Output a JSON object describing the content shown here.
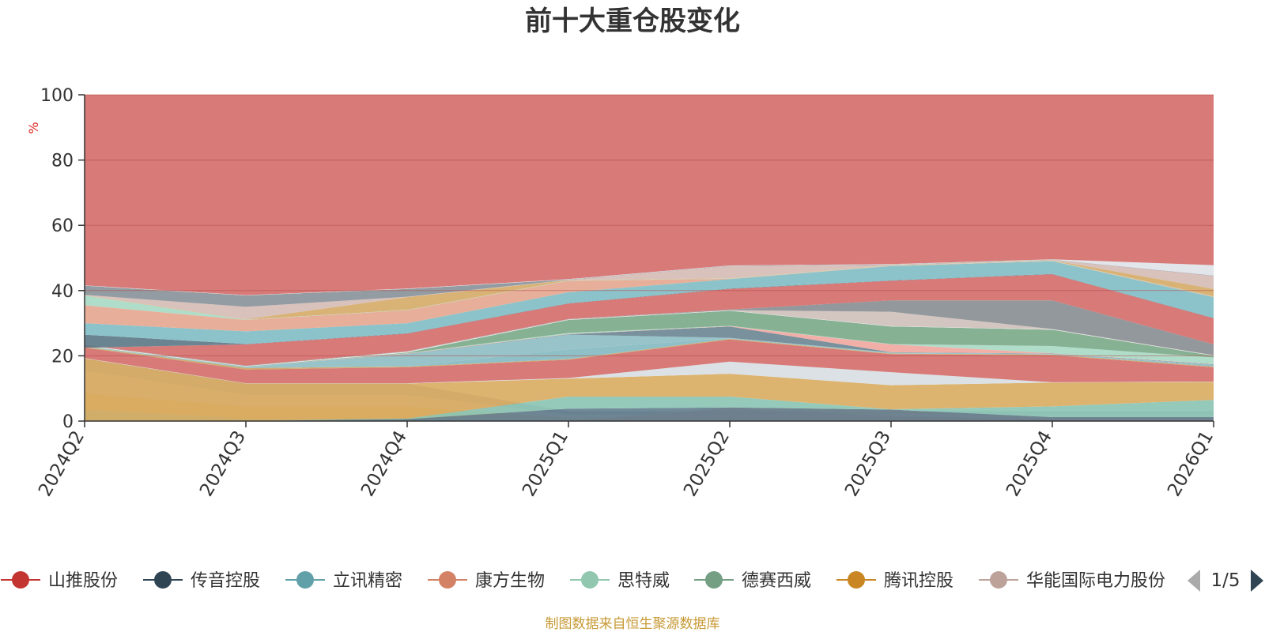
{
  "chart_data": {
    "type": "area",
    "stacked": true,
    "title": "前十大重仓股变化",
    "ylabel": "%",
    "ylim": [
      0,
      100
    ],
    "yticks": [
      0,
      20,
      40,
      60,
      80,
      100
    ],
    "categories": [
      "2024Q2",
      "2024Q3",
      "2024Q4",
      "2025Q1",
      "2025Q2",
      "2025Q3",
      "2025Q4",
      "2026Q1"
    ],
    "bands": [
      {
        "color": "#66a9b3",
        "base": [
          0,
          0,
          0,
          0,
          0,
          0,
          0,
          0
        ],
        "top": [
          3.5,
          0.8,
          0.5,
          0.4,
          0.4,
          0.4,
          0.4,
          0.4
        ]
      },
      {
        "color": "#d7a24e",
        "base": [
          3.5,
          0.8,
          0.5,
          0.4,
          0.4,
          0.4,
          0.4,
          0.4
        ],
        "top": [
          8.5,
          4.5,
          4.5,
          1,
          1,
          1,
          1,
          1
        ]
      },
      {
        "color": "#d6bab6",
        "base": [
          8.5,
          4.5,
          4.5,
          1,
          1,
          1,
          1,
          1
        ],
        "top": [
          15.5,
          8,
          8,
          2,
          2,
          2,
          2,
          2
        ]
      },
      {
        "color": "#8d9598",
        "base": [
          15.5,
          8,
          8,
          2,
          2,
          2,
          2,
          2
        ],
        "top": [
          19.2,
          11.5,
          11.5,
          3,
          3,
          3,
          3,
          3
        ]
      },
      {
        "color": "#d46f6c",
        "base": [
          0,
          0,
          0,
          0,
          0,
          0,
          0,
          0
        ],
        "top": [
          0,
          0,
          0,
          0,
          3.8,
          1.5,
          0.5,
          0.5
        ]
      },
      {
        "color": "#e5a890",
        "base": [
          0,
          0,
          0,
          0,
          3.8,
          1.5,
          0.5,
          0.5
        ],
        "top": [
          0,
          0,
          0,
          0,
          4.2,
          3.5,
          0.8,
          0.8
        ]
      },
      {
        "color": "#65808f",
        "base": [
          0,
          0,
          0,
          0,
          0,
          0,
          0,
          0
        ],
        "top": [
          0,
          0,
          0.6,
          3.8,
          4.2,
          3.5,
          1.2,
          1.2
        ]
      },
      {
        "color": "#8cc6b5",
        "base": [
          0,
          0,
          0.6,
          3.8,
          4.2,
          3.5,
          1.2,
          1.2
        ],
        "top": [
          0,
          0,
          0.8,
          7.5,
          7.5,
          3.6,
          4.5,
          6.5
        ]
      },
      {
        "color": "#d9ac63",
        "base": [
          0,
          0,
          0.8,
          7.5,
          7.5,
          3.6,
          4.5,
          6.5
        ],
        "top": [
          19.2,
          11.5,
          11.5,
          13,
          14.5,
          11,
          11.8,
          12
        ]
      },
      {
        "color": "#d9dee3",
        "base": [
          19.2,
          11.5,
          11.5,
          13,
          14.5,
          11,
          11.8,
          12
        ],
        "top": [
          19.3,
          11.6,
          11.6,
          13.2,
          18.2,
          15,
          11.9,
          12.1
        ]
      },
      {
        "color": "#d46f6c",
        "base": [
          19.3,
          11.6,
          11.6,
          13.2,
          18.2,
          15,
          11.9,
          12.1
        ],
        "top": [
          22.5,
          15.8,
          16.5,
          18.8,
          25,
          20.5,
          20.2,
          16.5
        ]
      },
      {
        "color": "#cba363",
        "base": [
          22.5,
          15.8,
          16.5,
          18.8,
          25,
          20.5,
          20.2,
          16.5
        ],
        "top": [
          22.7,
          16.3,
          16.7,
          19,
          25.2,
          20.7,
          20.4,
          16.7
        ]
      },
      {
        "color": "#87bbc2",
        "base": [
          22.7,
          16.3,
          16.7,
          19,
          25.2,
          20.7,
          20.4,
          16.7
        ],
        "top": [
          22.8,
          16.5,
          16.8,
          22,
          25.4,
          20.8,
          20.5,
          17.2
        ]
      },
      {
        "color": "#8fbec4",
        "base": [
          22.8,
          16.5,
          16.8,
          22,
          25.4,
          20.8,
          20.5,
          17.2
        ],
        "top": [
          22.9,
          16.6,
          20.5,
          26.5,
          25.5,
          21,
          20.6,
          17.3
        ]
      },
      {
        "color": "#6e8895",
        "base": [
          22.9,
          16.6,
          20.5,
          26.5,
          25.5,
          21,
          20.6,
          17.3
        ],
        "top": [
          22.9,
          16.6,
          20.6,
          26.6,
          29,
          21.1,
          20.7,
          17.4
        ]
      },
      {
        "color": "#f0a8a1",
        "base": [
          22.9,
          16.6,
          20.6,
          26.6,
          29,
          21.1,
          20.7,
          17.4
        ],
        "top": [
          22.9,
          16.6,
          20.7,
          26.7,
          29.1,
          23.5,
          20.8,
          17.5
        ]
      },
      {
        "color": "#a9d9c6",
        "base": [
          22.9,
          16.6,
          20.7,
          26.7,
          29.1,
          23.5,
          20.8,
          17.5
        ],
        "top": [
          22.9,
          16.6,
          20.8,
          27,
          29.2,
          23.6,
          23,
          19.5
        ]
      },
      {
        "color": "#7caa8a",
        "base": [
          22.9,
          16.6,
          20.8,
          27,
          29.2,
          23.6,
          23,
          19.5
        ],
        "top": [
          23,
          16.7,
          21,
          31,
          33.8,
          29,
          28,
          20
        ]
      },
      {
        "color": "#e8eaec",
        "base": [
          23,
          16.7,
          21,
          31,
          33.8,
          29,
          28,
          20
        ],
        "top": [
          23.2,
          16.8,
          21.2,
          31.1,
          33.9,
          29.1,
          28.1,
          20.1
        ]
      },
      {
        "color": "#cfc0bb",
        "base": [
          23.2,
          16.8,
          21.2,
          31.1,
          33.9,
          29.1,
          28.1,
          20.1
        ],
        "top": [
          23.3,
          16.9,
          21.3,
          31.2,
          34,
          33.5,
          28.2,
          20.2
        ]
      },
      {
        "color": "#8a8f94",
        "base": [
          23.3,
          16.9,
          21.3,
          31.2,
          34,
          33.5,
          28.2,
          20.2
        ],
        "top": [
          23.4,
          17,
          21.4,
          31.3,
          34.2,
          37,
          37,
          23.5
        ]
      },
      {
        "color": "#d46f6c",
        "base": [
          23.4,
          17,
          21.4,
          31.3,
          34.2,
          37,
          37,
          23.5
        ],
        "top": [
          22.5,
          23.5,
          26.8,
          36,
          40.5,
          43,
          45,
          31.5
        ]
      },
      {
        "color": "#5e7a88",
        "base": [
          22.5,
          23.5,
          26.8,
          36,
          40.5,
          43,
          45,
          31.5
        ],
        "top": [
          26.5,
          23.6,
          26.9,
          36.1,
          40.6,
          43.1,
          45.1,
          31.6
        ]
      },
      {
        "color": "#82bec5",
        "base": [
          26.5,
          23.6,
          26.9,
          36.1,
          40.6,
          43.1,
          45.1,
          31.6
        ],
        "top": [
          30,
          27.5,
          30,
          39.5,
          43.5,
          47.5,
          49,
          38
        ]
      },
      {
        "color": "#e5a890",
        "base": [
          30,
          27.5,
          30,
          39.5,
          43.5,
          47.5,
          49,
          38
        ],
        "top": [
          35.5,
          31,
          34,
          43,
          43.6,
          47.6,
          49.1,
          38.1
        ]
      },
      {
        "color": "#a9d9c6",
        "base": [
          35.5,
          31,
          34,
          43,
          43.6,
          47.6,
          49.1,
          38.1
        ],
        "top": [
          38.5,
          31.1,
          34.1,
          43.1,
          43.7,
          47.7,
          49.2,
          38.2
        ]
      },
      {
        "color": "#d6ad6a",
        "base": [
          38.5,
          31.1,
          34.1,
          43.1,
          43.7,
          47.7,
          49.2,
          38.2
        ],
        "top": [
          38.6,
          31.2,
          38,
          43.2,
          43.8,
          47.8,
          49.3,
          40.5
        ]
      },
      {
        "color": "#d6bcb6",
        "base": [
          38.6,
          31.2,
          38,
          43.2,
          43.8,
          47.8,
          49.3,
          40.5
        ],
        "top": [
          38.7,
          35,
          38.1,
          43.3,
          47.5,
          47.9,
          49.4,
          44.5
        ]
      },
      {
        "color": "#8a949a",
        "base": [
          38.7,
          35,
          38.1,
          43.3,
          47.5,
          47.9,
          49.4,
          44.5
        ],
        "top": [
          41.5,
          38.5,
          40.5,
          43.4,
          47.6,
          48,
          49.5,
          44.6
        ]
      },
      {
        "color": "#dfe3e7",
        "base": [
          41.5,
          38.5,
          40.5,
          43.4,
          47.6,
          48,
          49.5,
          44.6
        ],
        "top": [
          41.6,
          38.6,
          40.6,
          43.5,
          47.7,
          48.1,
          49.6,
          47.8
        ]
      },
      {
        "color": "#d46f6c",
        "base": [
          41.6,
          38.6,
          40.6,
          43.5,
          47.7,
          48.1,
          49.6,
          47.8
        ],
        "top": [
          100,
          100,
          100,
          100,
          100,
          100,
          100,
          100
        ]
      }
    ],
    "legend": [
      {
        "name": "山推股份",
        "color": "#c23531"
      },
      {
        "name": "传音控股",
        "color": "#2f4554"
      },
      {
        "name": "立讯精密",
        "color": "#61a0a8"
      },
      {
        "name": "康方生物",
        "color": "#d48265"
      },
      {
        "name": "思特威",
        "color": "#91c7ae"
      },
      {
        "name": "德赛西威",
        "color": "#749f83"
      },
      {
        "name": "腾讯控股",
        "color": "#ca8622"
      },
      {
        "name": "华能国际电力股份",
        "color": "#bda29a"
      }
    ],
    "legend_page": "1/5",
    "source_note": "制图数据来自恒生聚源数据库"
  },
  "colors": {
    "title": "#333333",
    "axis": "#333333",
    "ylabel": "#e02020",
    "gridline": "#b24a47",
    "source": "#c79a36",
    "pager_active": "#2f4554",
    "pager_inactive": "#aaaaaa"
  }
}
